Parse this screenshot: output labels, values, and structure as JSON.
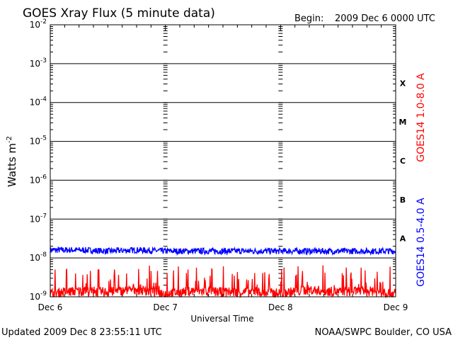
{
  "header": {
    "title": "GOES Xray Flux (5 minute data)",
    "begin_label": "Begin:",
    "begin_value": "2009 Dec 6 0000 UTC"
  },
  "footer": {
    "updated": "Updated 2009 Dec  8 23:55:11 UTC",
    "credit": "NOAA/SWPC Boulder, CO USA"
  },
  "chart_data": {
    "type": "line",
    "xlabel": "Universal Time",
    "ylabel": "Watts m",
    "ylabel_exponent": "-2",
    "x_ticks": [
      "Dec 6",
      "Dec 7",
      "Dec 8",
      "Dec 9"
    ],
    "xlim": [
      "2009-12-06",
      "2009-12-09"
    ],
    "yscale": "log",
    "ylim": [
      1e-09,
      0.01
    ],
    "y_ticks": [
      {
        "base": "10",
        "exp": "-9"
      },
      {
        "base": "10",
        "exp": "-8"
      },
      {
        "base": "10",
        "exp": "-7"
      },
      {
        "base": "10",
        "exp": "-6"
      },
      {
        "base": "10",
        "exp": "-5"
      },
      {
        "base": "10",
        "exp": "-4"
      },
      {
        "base": "10",
        "exp": "-3"
      },
      {
        "base": "10",
        "exp": "-2"
      }
    ],
    "flare_classes": [
      "A",
      "B",
      "C",
      "M",
      "X"
    ],
    "grid": true,
    "series": [
      {
        "name": "GOES14 0.5-4.0 A",
        "color": "#0000ff",
        "x": [
          "2009-12-06 00:00",
          "2009-12-06 06:00",
          "2009-12-06 12:00",
          "2009-12-06 18:00",
          "2009-12-07 00:00",
          "2009-12-07 06:00",
          "2009-12-07 12:00",
          "2009-12-07 18:00",
          "2009-12-08 00:00",
          "2009-12-08 06:00",
          "2009-12-08 12:00",
          "2009-12-08 18:00",
          "2009-12-09 00:00"
        ],
        "values": [
          1.6e-08,
          1.6e-08,
          1.5e-08,
          1.6e-08,
          1.5e-08,
          1.5e-08,
          1.5e-08,
          1.5e-08,
          1.5e-08,
          1.5e-08,
          1.5e-08,
          1.5e-08,
          1.5e-08
        ]
      },
      {
        "name": "GOES14 1.0-8.0 A",
        "color": "#ff0000",
        "x": [
          "2009-12-06 00:00",
          "2009-12-06 06:00",
          "2009-12-06 12:00",
          "2009-12-06 18:00",
          "2009-12-07 00:00",
          "2009-12-07 06:00",
          "2009-12-07 12:00",
          "2009-12-07 18:00",
          "2009-12-08 00:00",
          "2009-12-08 06:00",
          "2009-12-08 12:00",
          "2009-12-08 18:00",
          "2009-12-09 00:00"
        ],
        "values": [
          1.3e-09,
          1.5e-09,
          1.4e-09,
          1.6e-09,
          1.3e-09,
          1.5e-09,
          1.4e-09,
          1.4e-09,
          1.3e-09,
          1.6e-09,
          1.4e-09,
          1.5e-09,
          1.3e-09
        ]
      }
    ]
  }
}
